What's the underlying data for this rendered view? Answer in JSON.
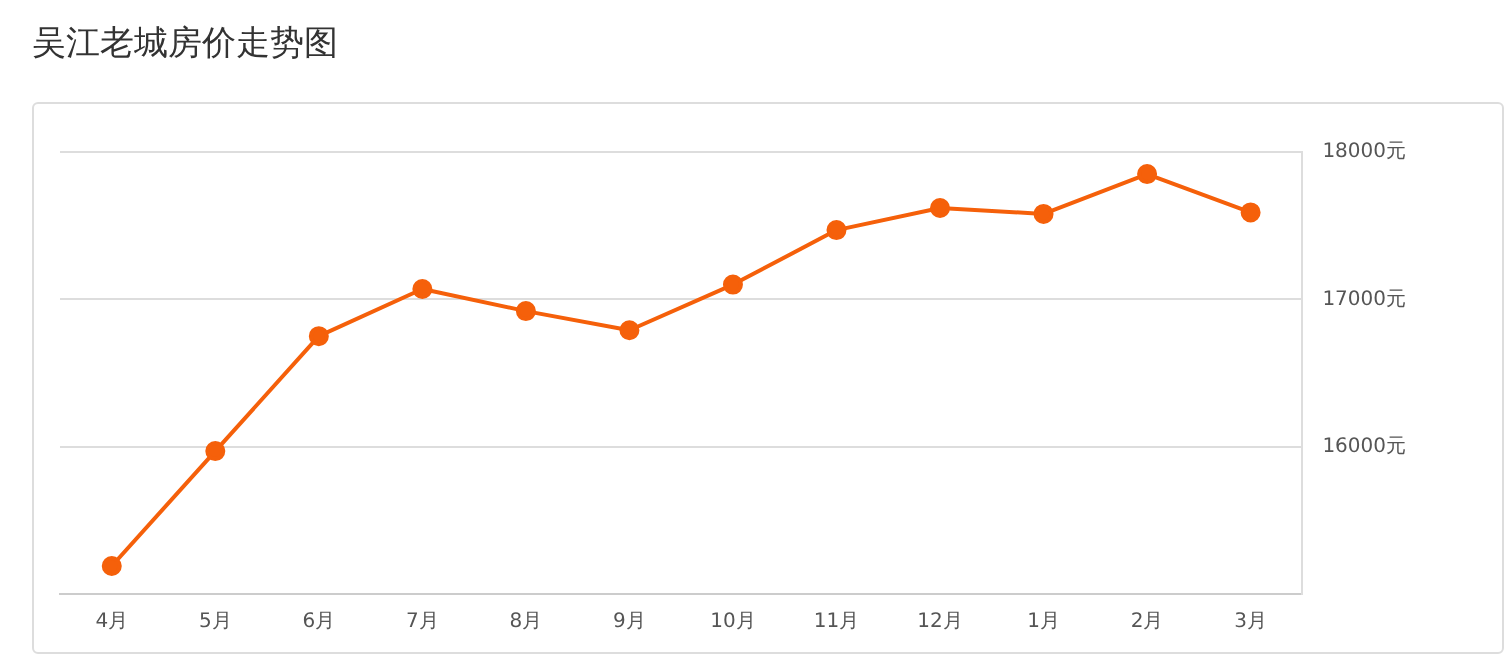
{
  "chart_data": {
    "type": "line",
    "title": "吴江老城房价走势图",
    "categories": [
      "4月",
      "5月",
      "6月",
      "7月",
      "8月",
      "9月",
      "10月",
      "11月",
      "12月",
      "1月",
      "2月",
      "3月"
    ],
    "series": [
      {
        "color": "#f5600a",
        "values": [
          15190,
          15970,
          16750,
          17070,
          16920,
          16790,
          17100,
          17470,
          17620,
          17580,
          17850,
          17590
        ]
      }
    ],
    "ylim": [
      15000,
      18000
    ],
    "yticks": [
      {
        "value": 16000,
        "label": "16000元"
      },
      {
        "value": 17000,
        "label": "17000元"
      },
      {
        "value": 18000,
        "label": "18000元"
      }
    ],
    "grid": "y",
    "legend": false,
    "marker": "circle",
    "line_style": "solid"
  }
}
